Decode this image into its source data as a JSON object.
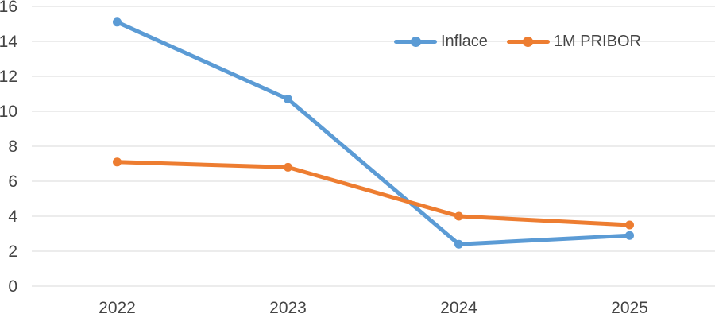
{
  "chart_data": {
    "type": "line",
    "title": "",
    "xlabel": "",
    "ylabel": "",
    "categories": [
      "2022",
      "2023",
      "2024",
      "2025"
    ],
    "series": [
      {
        "name": "Inflace",
        "color": "#5B9BD5",
        "values": [
          15.1,
          10.7,
          2.4,
          2.9
        ]
      },
      {
        "name": "1M PRIBOR",
        "color": "#ED7D31",
        "values": [
          7.1,
          6.8,
          4.0,
          3.5
        ]
      }
    ],
    "ylim": [
      0,
      16
    ],
    "yticks": [
      0,
      2,
      4,
      6,
      8,
      10,
      12,
      14,
      16
    ],
    "grid": true,
    "legend_position": "inside-top-center-right",
    "gridline_color": "#D9D9D9",
    "axis_text_color": "#444444",
    "legend_text_color": "#444444",
    "background_color": "#FFFFFF",
    "marker_style": "circle"
  }
}
